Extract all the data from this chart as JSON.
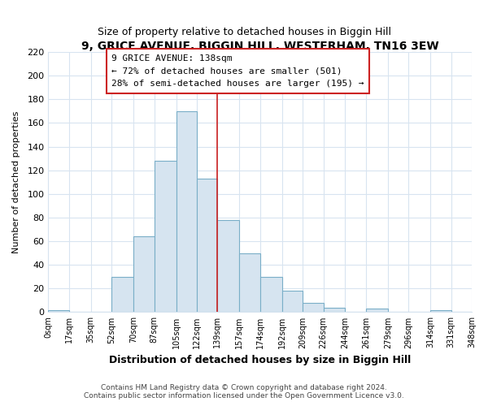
{
  "title": "9, GRICE AVENUE, BIGGIN HILL, WESTERHAM, TN16 3EW",
  "subtitle": "Size of property relative to detached houses in Biggin Hill",
  "xlabel": "Distribution of detached houses by size in Biggin Hill",
  "ylabel": "Number of detached properties",
  "bin_edges": [
    0,
    17,
    35,
    52,
    70,
    87,
    105,
    122,
    139,
    157,
    174,
    192,
    209,
    226,
    244,
    261,
    279,
    296,
    314,
    331,
    348
  ],
  "bar_heights": [
    2,
    0,
    0,
    30,
    64,
    128,
    170,
    113,
    78,
    50,
    30,
    18,
    8,
    4,
    0,
    3,
    0,
    0,
    2,
    0
  ],
  "bar_color": "#d6e4f0",
  "bar_edgecolor": "#7aaec8",
  "property_line_x": 139,
  "property_label": "9 GRICE AVENUE: 138sqm",
  "smaller_pct": "72%",
  "smaller_count": 501,
  "larger_pct": "28%",
  "larger_count": 195,
  "annotation_box_color": "#ffffff",
  "annotation_box_edgecolor": "#cc2222",
  "vline_color": "#cc2222",
  "tick_labels": [
    "0sqm",
    "17sqm",
    "35sqm",
    "52sqm",
    "70sqm",
    "87sqm",
    "105sqm",
    "122sqm",
    "139sqm",
    "157sqm",
    "174sqm",
    "192sqm",
    "209sqm",
    "226sqm",
    "244sqm",
    "261sqm",
    "279sqm",
    "296sqm",
    "314sqm",
    "331sqm",
    "348sqm"
  ],
  "ylim": [
    0,
    220
  ],
  "yticks": [
    0,
    20,
    40,
    60,
    80,
    100,
    120,
    140,
    160,
    180,
    200,
    220
  ],
  "footer1": "Contains HM Land Registry data © Crown copyright and database right 2024.",
  "footer2": "Contains public sector information licensed under the Open Government Licence v3.0.",
  "background_color": "#ffffff",
  "plot_background": "#ffffff",
  "grid_color": "#d8e4f0"
}
